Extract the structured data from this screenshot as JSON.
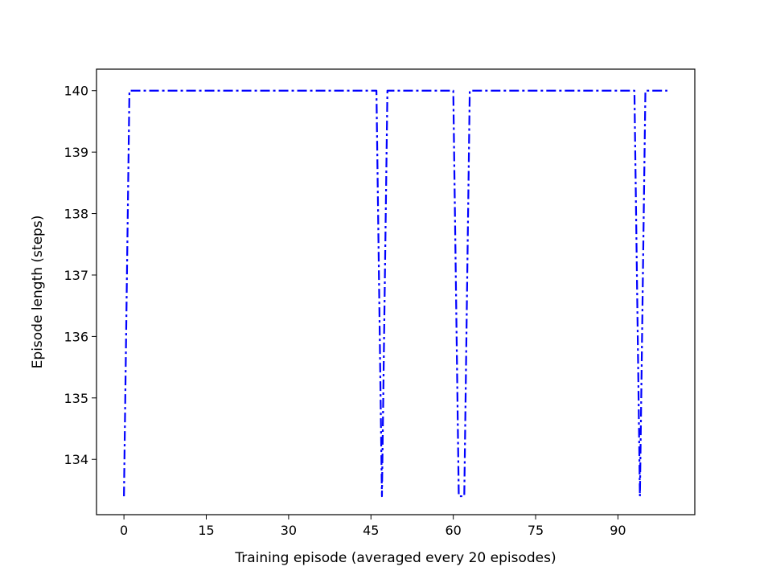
{
  "chart_data": {
    "type": "line",
    "title": "",
    "xlabel": "Training episode (averaged every 20 episodes)",
    "ylabel": "Episode length (steps)",
    "xlim": [
      -5,
      104
    ],
    "ylim": [
      133.1,
      140.35
    ],
    "xticks": [
      0,
      15,
      30,
      45,
      60,
      75,
      90
    ],
    "yticks": [
      134,
      135,
      136,
      137,
      138,
      139,
      140
    ],
    "grid": false,
    "legend": "none",
    "series": [
      {
        "color": "#0000ff",
        "line_style": "dash-dot",
        "x": [
          0,
          1,
          2,
          3,
          4,
          5,
          6,
          7,
          8,
          9,
          10,
          11,
          12,
          13,
          14,
          15,
          16,
          17,
          18,
          19,
          20,
          21,
          22,
          23,
          24,
          25,
          26,
          27,
          28,
          29,
          30,
          31,
          32,
          33,
          34,
          35,
          36,
          37,
          38,
          39,
          40,
          41,
          42,
          43,
          44,
          45,
          46,
          47,
          48,
          49,
          50,
          51,
          52,
          53,
          54,
          55,
          56,
          57,
          58,
          59,
          60,
          61,
          62,
          63,
          64,
          65,
          66,
          67,
          68,
          69,
          70,
          71,
          72,
          73,
          74,
          75,
          76,
          77,
          78,
          79,
          80,
          81,
          82,
          83,
          84,
          85,
          86,
          87,
          88,
          89,
          90,
          91,
          92,
          93,
          94,
          95,
          96,
          97,
          98,
          99
        ],
        "y": [
          133.4,
          140,
          140,
          140,
          140,
          140,
          140,
          140,
          140,
          140,
          140,
          140,
          140,
          140,
          140,
          140,
          140,
          140,
          140,
          140,
          140,
          140,
          140,
          140,
          140,
          140,
          140,
          140,
          140,
          140,
          140,
          140,
          140,
          140,
          140,
          140,
          140,
          140,
          140,
          140,
          140,
          140,
          140,
          140,
          140,
          140,
          140,
          133.4,
          140,
          140,
          140,
          140,
          140,
          140,
          140,
          140,
          140,
          140,
          140,
          140,
          140,
          133.4,
          133.4,
          140,
          140,
          140,
          140,
          140,
          140,
          140,
          140,
          140,
          140,
          140,
          140,
          140,
          140,
          140,
          140,
          140,
          140,
          140,
          140,
          140,
          140,
          140,
          140,
          140,
          140,
          140,
          140,
          140,
          140,
          140,
          133.4,
          140,
          140,
          140,
          140,
          140
        ]
      }
    ]
  }
}
